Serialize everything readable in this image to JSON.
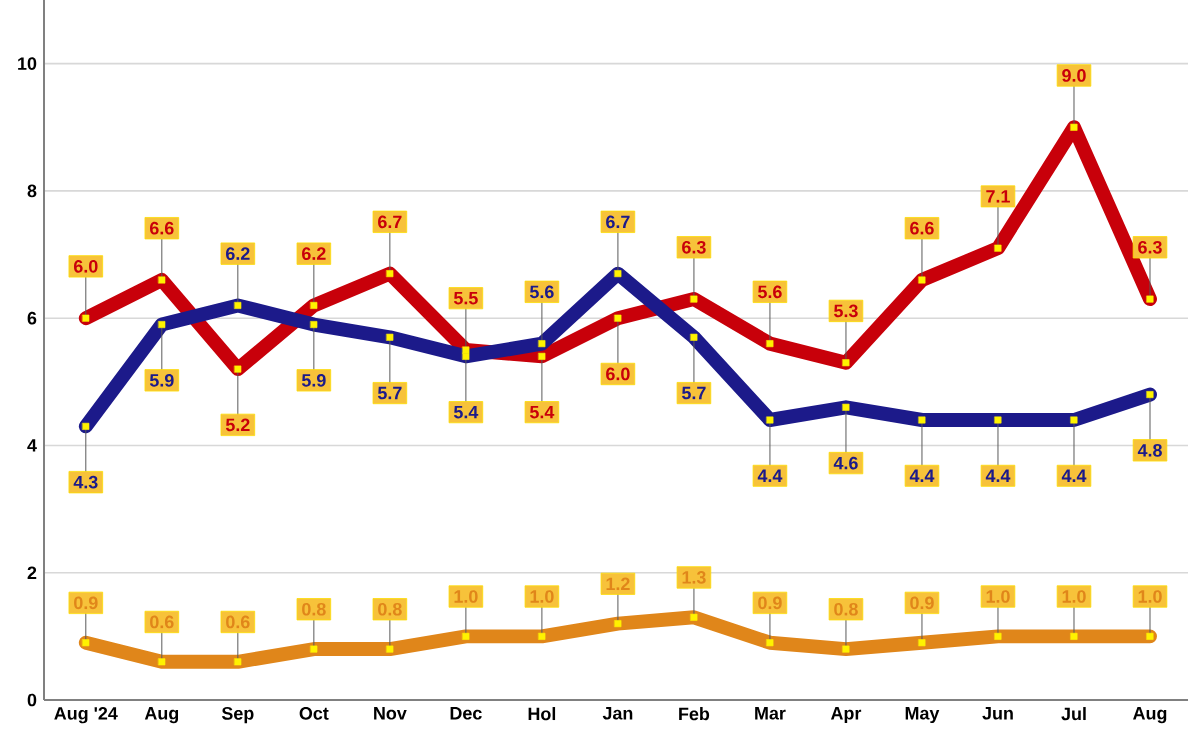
{
  "chart_data": {
    "type": "line",
    "categories": [
      "Aug '24",
      "Aug",
      "Sep",
      "Oct",
      "Nov",
      "Dec",
      "Hol",
      "Jan",
      "Feb",
      "Mar",
      "Apr",
      "May",
      "Jun",
      "Jul",
      "Aug"
    ],
    "series": [
      {
        "color": "#c8000a",
        "values": [
          6.0,
          6.6,
          5.2,
          6.2,
          6.7,
          5.5,
          5.4,
          6.0,
          6.3,
          5.6,
          5.3,
          6.6,
          7.1,
          9.0,
          6.3
        ],
        "value_labels": [
          "6.0",
          "6.6",
          "5.2",
          "6.2",
          "6.7",
          "5.5",
          "5.4",
          "6.0",
          "6.3",
          "5.6",
          "5.3",
          "6.6",
          "7.1",
          "9.0",
          "6.3"
        ]
      },
      {
        "color": "#1c1a8a",
        "values": [
          4.3,
          5.9,
          6.2,
          5.9,
          5.7,
          5.4,
          5.6,
          6.7,
          5.7,
          4.4,
          4.6,
          4.4,
          4.4,
          4.4,
          4.8
        ],
        "value_labels": [
          "4.3",
          "5.9",
          "6.2",
          "5.9",
          "5.7",
          "5.4",
          "5.6",
          "6.7",
          "5.7",
          "4.4",
          "4.6",
          "4.4",
          "4.4",
          "4.4",
          "4.8"
        ]
      },
      {
        "color": "#e0861a",
        "values": [
          0.9,
          0.6,
          0.6,
          0.8,
          0.8,
          1.0,
          1.0,
          1.2,
          1.3,
          0.9,
          0.8,
          0.9,
          1.0,
          1.0,
          1.0
        ],
        "value_labels": [
          "0.9",
          "0.6",
          "0.6",
          "0.8",
          "0.8",
          "1.0",
          "1.0",
          "1.2",
          "1.3",
          "0.9",
          "0.8",
          "0.9",
          "1.0",
          "1.0",
          "1.0"
        ]
      }
    ],
    "ylim": [
      0,
      11
    ],
    "yticks": [
      0,
      2,
      4,
      6,
      8,
      10
    ],
    "grid": "y",
    "marker": "square",
    "line_style": "solid"
  }
}
